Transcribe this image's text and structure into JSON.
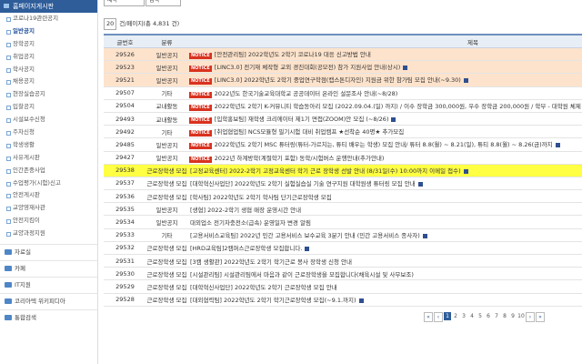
{
  "sidebar": {
    "header": "홈페이지게시판",
    "items": [
      "코로나19관련공지",
      "일반공지",
      "장학공지",
      "취업공지",
      "학사공지",
      "채용공지",
      "현장실습공지",
      "입찰공지",
      "시설보수신청",
      "주차신청",
      "학생생활",
      "사유게시판",
      "인간존중사업",
      "수업평가(시험)신고",
      "안전게시판",
      "교양영재사관",
      "안전지킴이",
      "교양과정지원"
    ],
    "active": 1,
    "sections": [
      "자료실",
      "카페",
      "IT지원",
      "코리아텍 위키피디아",
      "통합검색"
    ]
  },
  "search": {
    "field": "제목",
    "button": "검색"
  },
  "list_info": {
    "page_size": "20",
    "summary": "건/페이지(총 4,831 건)"
  },
  "notice_badge": "NOTICE",
  "table": {
    "headers": [
      "글번호",
      "분류",
      "제목"
    ],
    "rows": [
      {
        "cells": [
          "29526",
          "일반공지",
          "[안전관리팀] 2022학년도 2학기 코로나19 대응 신고방법 안내"
        ],
        "notice": true,
        "highlight": "orange",
        "attachment": false
      },
      {
        "cells": [
          "29523",
          "일반공지",
          "[LINC3.0] 전기재 체작형 교외 경진대회(공모전) 참가 지원사업 안내(상시)"
        ],
        "notice": true,
        "highlight": "orange",
        "attachment": true
      },
      {
        "cells": [
          "29521",
          "일반공지",
          "[LINC3.0] 2022학년도 2학기 중업연구학점(캡스톤디자인) 지원금 위한 참가팀 모집 안내(~9.30)"
        ],
        "notice": true,
        "highlight": "orange",
        "attachment": true
      },
      {
        "cells": [
          "29507",
          "기타",
          "2022년도 한국기술교육대학교 공공데이터 온라인 설문조사 안내(~8/28)"
        ],
        "notice": true,
        "highlight": "none",
        "attachment": false
      },
      {
        "cells": [
          "29504",
          "교내활동",
          "2022학년도 2학기 K-커뮤니티 학습동아리 모집 (2022.09.04.(일) 까지) / 이수 장학금 300,000원, 우수 장학금 200,000원 / 학부 - 대학원 체제"
        ],
        "notice": true,
        "highlight": "none",
        "attachment": false
      },
      {
        "cells": [
          "29493",
          "교내활동",
          "[입학홍보팀] 재학생 크리에이터 제1기 면접(ZOOM)안 모집 (~8/26)"
        ],
        "notice": true,
        "highlight": "none",
        "attachment": true
      },
      {
        "cells": [
          "29492",
          "기타",
          "[취업협업팀] NCS모듈형 필기시험 대비 취업캠프 ★선착순 40명★ 추가모집"
        ],
        "notice": true,
        "highlight": "none",
        "attachment": false
      },
      {
        "cells": [
          "29485",
          "일반공지",
          "2022학년도 2학기 MSC 튜터링(튜터-가르치는, 튜티 배우는 학생) 모집 안내/ 튜터 8.8(월) ~ 8.21(일), 튜티 8.8(월) ~ 8.26(금)까지"
        ],
        "notice": true,
        "highlight": "none",
        "attachment": true
      },
      {
        "cells": [
          "29427",
          "일반공지",
          "2022년 하계방학(계절학기 포함) 동학/시험버스 운행안내(추가안내)"
        ],
        "notice": true,
        "highlight": "none",
        "attachment": false
      },
      {
        "cells": [
          "29538",
          "근로장학생 모집",
          "[고정교육센터] 2022-2학기 고정교육센터 학기 근로 장학생 선발 안내 (8/31일(수) 10:00까지 이메일 접수)"
        ],
        "notice": false,
        "highlight": "yellow",
        "attachment": true
      },
      {
        "cells": [
          "29537",
          "근로장학생 모집",
          "[대학혁신사업단] 2022학년도 2학기 실험실습실 기술 연구지원 대학원생 튜터링 모집 안내"
        ],
        "notice": false,
        "highlight": "none",
        "attachment": true
      },
      {
        "cells": [
          "29536",
          "근로장학생 모집",
          "[학사팀] 2022학년도 2학기 학사팀 단기근로장학생 모집"
        ],
        "notice": false,
        "highlight": "none",
        "attachment": false
      },
      {
        "cells": [
          "29535",
          "일반공지",
          "[생협] 2022-2학기 생협 매장 운영시간 안내"
        ],
        "notice": false,
        "highlight": "none",
        "attachment": false
      },
      {
        "cells": [
          "29534",
          "일반공지",
          "대외업소 전기차충전소(급속) 운영일자 변경 알림"
        ],
        "notice": false,
        "highlight": "none",
        "attachment": false
      },
      {
        "cells": [
          "29533",
          "기타",
          "[고용서비스교육팀] 2022년 민간 고용서비스 보수교육 3분기 안내 (민간 고용서비스 종사자)"
        ],
        "notice": false,
        "highlight": "none",
        "attachment": true
      },
      {
        "cells": [
          "29532",
          "근로장학생 모집",
          "[HRD교육팀]2캠퍼스근로장학생 모집합니다."
        ],
        "notice": false,
        "highlight": "none",
        "attachment": true
      },
      {
        "cells": [
          "29531",
          "근로장학생 모집",
          "[3캠 생활관] 2022학년도 2학기 학기근로 봉사 장학생 신청 안내"
        ],
        "notice": false,
        "highlight": "none",
        "attachment": false
      },
      {
        "cells": [
          "29530",
          "근로장학생 모집",
          "[시설관리팀] 시설관리팀에서 마음과 같이 근로장학생을 모집합니다(채육시설 및 사무보조)"
        ],
        "notice": false,
        "highlight": "none",
        "attachment": false
      },
      {
        "cells": [
          "29529",
          "근로장학생 모집",
          "[대학혁신사업단] 2022학년도 2학기 근로장학생 모집 안내"
        ],
        "notice": false,
        "highlight": "none",
        "attachment": false
      },
      {
        "cells": [
          "29528",
          "근로장학생 모집",
          "[대외협력팀] 2022학년도 2학기 학기근로장학생 모집(~9.1.까지)"
        ],
        "notice": false,
        "highlight": "none",
        "attachment": true
      }
    ]
  },
  "pagination": {
    "first": "«",
    "prev": "‹",
    "pages": [
      "1",
      "2",
      "3",
      "4",
      "5",
      "6",
      "7",
      "8",
      "9",
      "10"
    ],
    "current": 0,
    "next": "›",
    "last": "»"
  }
}
